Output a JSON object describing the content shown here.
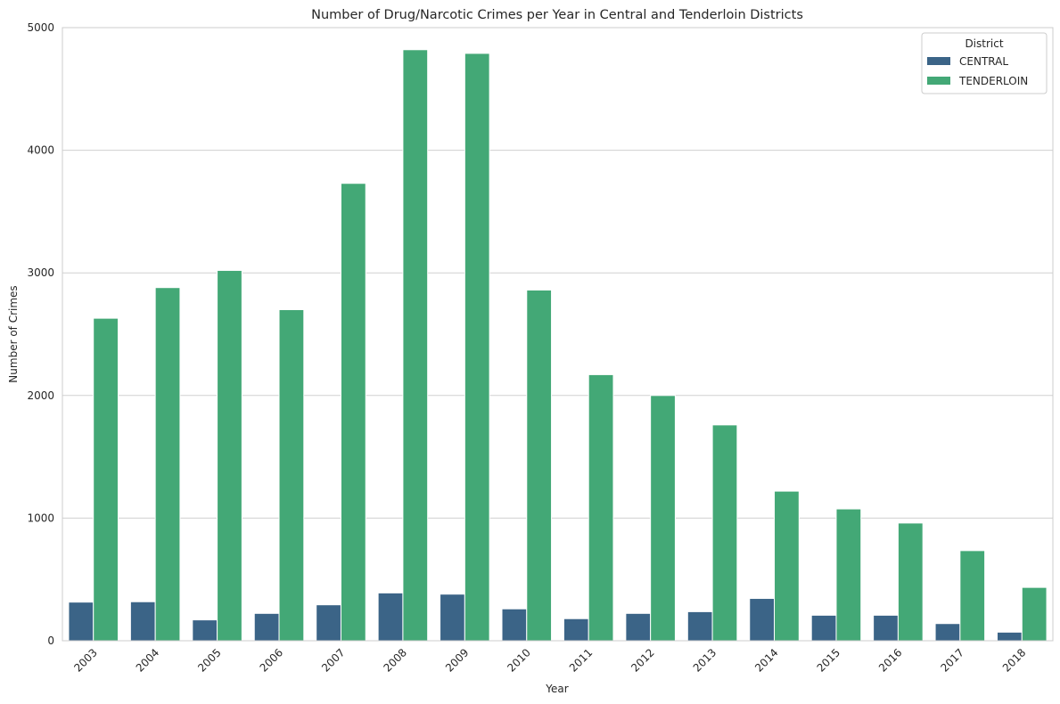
{
  "chart_data": {
    "type": "bar",
    "title": "Number of Drug/Narcotic Crimes per Year in Central and Tenderloin Districts",
    "xlabel": "Year",
    "ylabel": "Number of Crimes",
    "categories": [
      "2003",
      "2004",
      "2005",
      "2006",
      "2007",
      "2008",
      "2009",
      "2010",
      "2011",
      "2012",
      "2013",
      "2014",
      "2015",
      "2016",
      "2017",
      "2018"
    ],
    "series": [
      {
        "name": "CENTRAL",
        "color": "#3b6487",
        "values": [
          315,
          318,
          170,
          223,
          293,
          390,
          380,
          260,
          180,
          223,
          237,
          345,
          208,
          208,
          140,
          70
        ]
      },
      {
        "name": "TENDERLOIN",
        "color": "#43a876",
        "values": [
          2630,
          2880,
          3020,
          2700,
          3730,
          4820,
          4790,
          2860,
          2170,
          2000,
          1760,
          1220,
          1075,
          960,
          735,
          435
        ]
      }
    ],
    "ylim": [
      0,
      5000
    ],
    "yticks": [
      0,
      1000,
      2000,
      3000,
      4000,
      5000
    ],
    "grid": true,
    "legend": {
      "title": "District",
      "position": "top-right"
    }
  }
}
